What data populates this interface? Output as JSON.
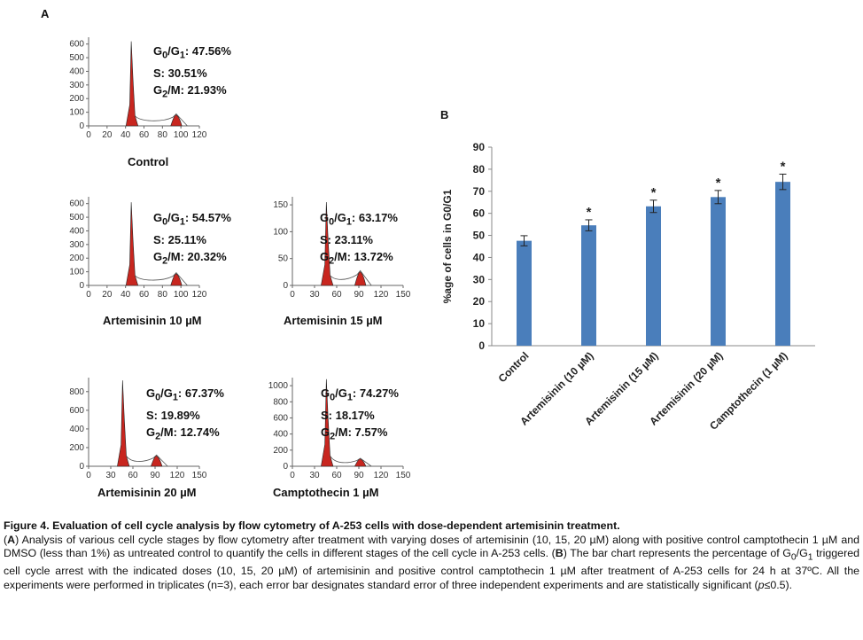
{
  "panels": {
    "a_letter": "A",
    "b_letter": "B"
  },
  "histograms": [
    {
      "label": "Control",
      "stats": {
        "g0g1_label": "G",
        "g0g1_sub0": "0",
        "g0g1_sep": "/G",
        "g0g1_sub1": "1",
        "g0g1_value": ": 47.56%",
        "s": "S: 30.51%",
        "g2m_label": "G",
        "g2m_sub": "2",
        "g2m_value": "/M: 21.93%"
      },
      "x_ticks": [
        "0",
        "20",
        "40",
        "60",
        "80",
        "100",
        "120"
      ],
      "x_max": 120,
      "y_ticks": [
        "0",
        "100",
        "200",
        "300",
        "400",
        "500",
        "600"
      ],
      "y_max": 650,
      "peak_g1": {
        "x": 47,
        "height": 620
      },
      "peak_g2": {
        "x": 95,
        "height": 80
      }
    },
    {
      "label": "Artemisinin 10 µM",
      "stats": {
        "g0g1_label": "G",
        "g0g1_sub0": "0",
        "g0g1_sep": "/G",
        "g0g1_sub1": "1",
        "g0g1_value": ": 54.57%",
        "s": "S: 25.11%",
        "g2m_label": "G",
        "g2m_sub": "2",
        "g2m_value": "/M: 20.32%"
      },
      "x_ticks": [
        "0",
        "20",
        "40",
        "60",
        "80",
        "100",
        "120"
      ],
      "x_max": 120,
      "y_ticks": [
        "0",
        "100",
        "200",
        "300",
        "400",
        "500",
        "600"
      ],
      "y_max": 650,
      "peak_g1": {
        "x": 47,
        "height": 610
      },
      "peak_g2": {
        "x": 95,
        "height": 85
      }
    },
    {
      "label": "Artemisinin 15 µM",
      "stats": {
        "g0g1_label": "G",
        "g0g1_sub0": "0",
        "g0g1_sep": "/G",
        "g0g1_sub1": "1",
        "g0g1_value": ": 63.17%",
        "s": "S: 23.11%",
        "g2m_label": "G",
        "g2m_sub": "2",
        "g2m_value": "/M: 13.72%"
      },
      "x_ticks": [
        "0",
        "30",
        "60",
        "90",
        "120",
        "150"
      ],
      "x_max": 150,
      "y_ticks": [
        "0",
        "50",
        "100",
        "150"
      ],
      "y_max": 165,
      "peak_g1": {
        "x": 47,
        "height": 155
      },
      "peak_g2": {
        "x": 92,
        "height": 25
      }
    },
    {
      "label": "Artemisinin 20 µM",
      "stats": {
        "g0g1_label": "G",
        "g0g1_sub0": "0",
        "g0g1_sep": "/G",
        "g0g1_sub1": "1",
        "g0g1_value": ": 67.37%",
        "s": "S: 19.89%",
        "g2m_label": "G",
        "g2m_sub": "2",
        "g2m_value": "/M: 12.74%"
      },
      "x_ticks": [
        "0",
        "30",
        "60",
        "90",
        "120",
        "150"
      ],
      "x_max": 150,
      "y_ticks": [
        "0",
        "200",
        "400",
        "600",
        "800"
      ],
      "y_max": 950,
      "peak_g1": {
        "x": 47,
        "height": 920
      },
      "peak_g2": {
        "x": 92,
        "height": 110
      }
    },
    {
      "label": "Camptothecin  1 µM",
      "stats": {
        "g0g1_label": "G",
        "g0g1_sub0": "0",
        "g0g1_sep": "/G",
        "g0g1_sub1": "1",
        "g0g1_value": ": 74.27%",
        "s": "S: 18.17%",
        "g2m_label": "G",
        "g2m_sub": "2",
        "g2m_value": "/M: 7.57%"
      },
      "x_ticks": [
        "0",
        "30",
        "60",
        "90",
        "120",
        "150"
      ],
      "x_max": 150,
      "y_ticks": [
        "0",
        "200",
        "400",
        "600",
        "800",
        "1000"
      ],
      "y_max": 1100,
      "peak_g1": {
        "x": 47,
        "height": 1080
      },
      "peak_g2": {
        "x": 92,
        "height": 90
      }
    }
  ],
  "chart_data": {
    "type": "bar",
    "categories": [
      "Control",
      "Artemisinin (10 µM)",
      "Artemisinin (15 µM)",
      "Artemisinin (20 µM)",
      "Camptothecin (1 µM)"
    ],
    "values": [
      47.56,
      54.57,
      63.17,
      67.37,
      74.27
    ],
    "errors": [
      2.3,
      2.5,
      2.8,
      3.0,
      3.5
    ],
    "significance": [
      "",
      "*",
      "*",
      "*",
      "*"
    ],
    "ylabel": "%age of cells in G0/G1",
    "ylim": [
      0,
      90
    ],
    "yticks": [
      0,
      10,
      20,
      30,
      40,
      50,
      60,
      70,
      80,
      90
    ],
    "bar_color": "#4a7ebb",
    "grid": false
  },
  "caption": {
    "title": "Figure 4. Evaluation of cell cycle analysis by flow cytometry of A-253 cells with dose-dependent artemisinin treatment.",
    "body_p1a": "(",
    "body_p1_A": "A",
    "body_p1b": ") Analysis of various cell cycle stages by flow cytometry after treatment with varying doses of artemisinin (10, 15, 20 µM) along with positive control camptothecin 1 µM and DMSO (less than 1%) as untreated control to quantify the cells in different stages of the cell cycle in A-253 cells. (",
    "body_p1_B": "B",
    "body_p2": ") The bar chart represents the percentage of G",
    "body_sub0": "0",
    "body_p3": "/G",
    "body_sub1": "1",
    "body_p4": " triggered cell cycle arrest with the indicated doses (10, 15, 20 µM) of artemisinin and positive control camptothecin 1 µM after treatment of A-253 cells for 24 h at 37ºC. All the experiments were performed in triplicates (n=3), each error bar designates standard error of three independent experiments and are statistically significant (",
    "body_p_italic": "p",
    "body_p5": "≤0.5)."
  }
}
